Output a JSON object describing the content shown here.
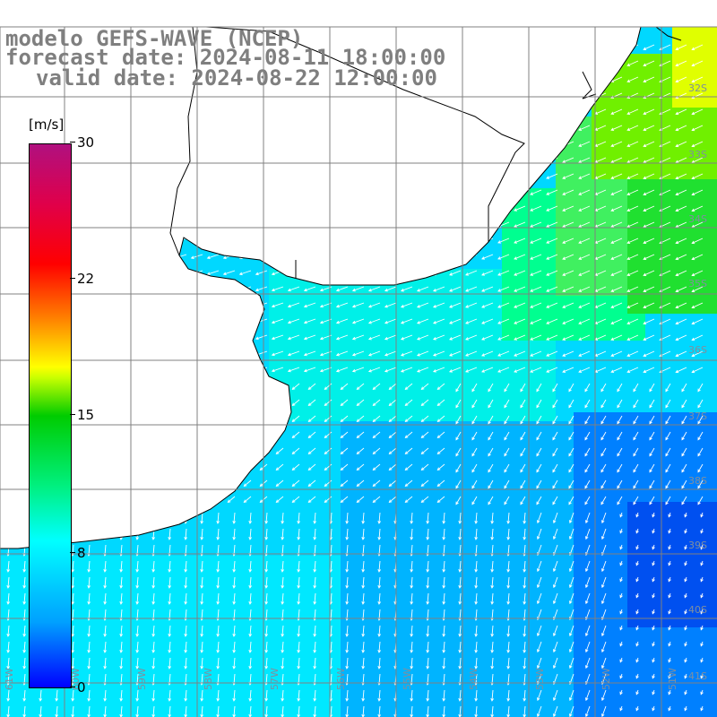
{
  "title": {
    "line1": "modelo GEFS-WAVE (NCEP)",
    "line2": "forecast date: 2024-08-11 18:00:00",
    "line3": "valid date: 2024-08-22 12:00:00"
  },
  "colorbar": {
    "unit": "[m/s]",
    "ticks": [
      "30",
      "22",
      "15",
      "8",
      "0"
    ],
    "colors": [
      "#0000ff",
      "#00a0ff",
      "#00ffff",
      "#00f080",
      "#00cc00",
      "#c8ff00",
      "#ffff00",
      "#ff8000",
      "#ff0000",
      "#e0004a",
      "#b0107f"
    ]
  },
  "map": {
    "lat_labels": [
      "32S",
      "33S",
      "34S",
      "35S",
      "36S",
      "37S",
      "38S",
      "39S",
      "40S",
      "41S"
    ],
    "lon_labels": [
      "61W",
      "60W",
      "59W",
      "58W",
      "57W",
      "56W",
      "55W",
      "54W",
      "53W",
      "52W",
      "51W"
    ],
    "land_color": "#ffffff",
    "grid_color": "#808080",
    "arrow_color": "#ffffff"
  }
}
